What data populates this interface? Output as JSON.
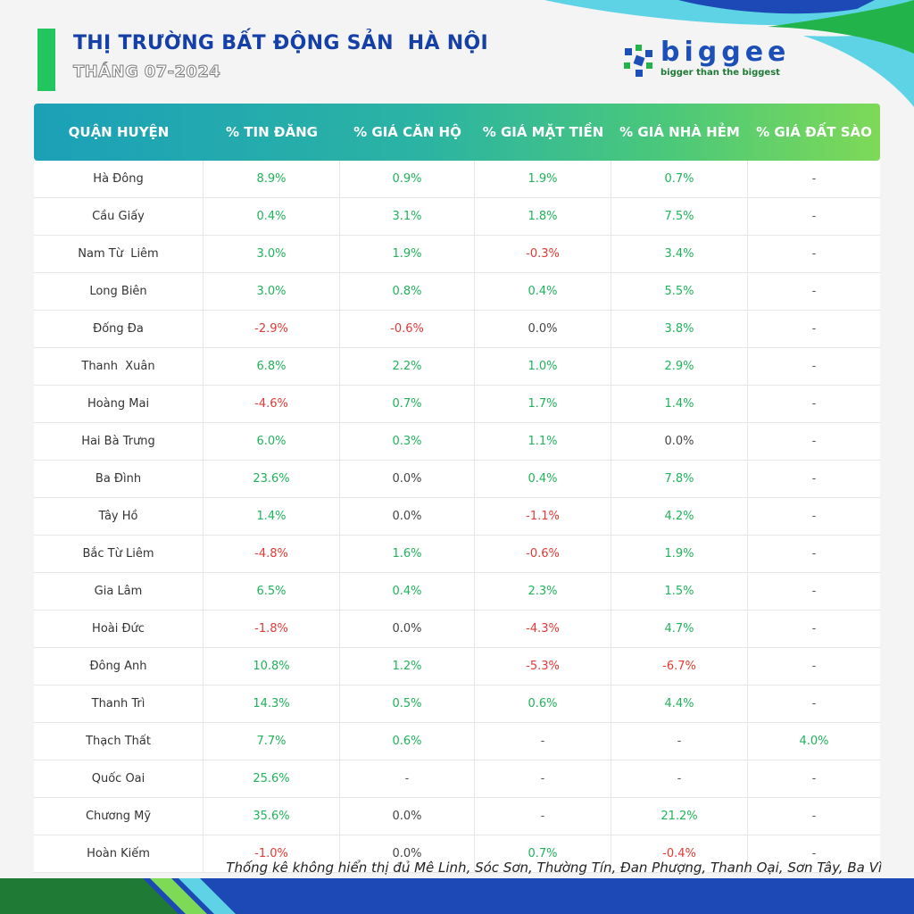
{
  "header": {
    "title": "THỊ TRƯỜNG BẤT ĐỘNG SẢN  HÀ NỘI",
    "subtitle": "THÁNG 07-2024"
  },
  "logo": {
    "wordmark": "biggee",
    "tagline": "bigger than the biggest"
  },
  "table": {
    "columns": [
      "QUẬN HUYỆN",
      "% TIN ĐĂNG",
      "% GIÁ CĂN HỘ",
      "% GIÁ MẶT TIỀN",
      "% GIÁ NHÀ HẺM",
      "% GIÁ ĐẤT SÀO"
    ],
    "rows": [
      [
        "Hà Đông",
        "8.9%",
        "0.9%",
        "1.9%",
        "0.7%",
        "-"
      ],
      [
        "Cầu Giấy",
        "0.4%",
        "3.1%",
        "1.8%",
        "7.5%",
        "-"
      ],
      [
        "Nam Từ  Liêm",
        "3.0%",
        "1.9%",
        "-0.3%",
        "3.4%",
        "-"
      ],
      [
        "Long Biên",
        "3.0%",
        "0.8%",
        "0.4%",
        "5.5%",
        "-"
      ],
      [
        "Đống Đa",
        "-2.9%",
        "-0.6%",
        "0.0%",
        "3.8%",
        "-"
      ],
      [
        "Thanh  Xuân",
        "6.8%",
        "2.2%",
        "1.0%",
        "2.9%",
        "-"
      ],
      [
        "Hoàng Mai",
        "-4.6%",
        "0.7%",
        "1.7%",
        "1.4%",
        "-"
      ],
      [
        "Hai Bà Trưng",
        "6.0%",
        "0.3%",
        "1.1%",
        "0.0%",
        "-"
      ],
      [
        "Ba Đình",
        "23.6%",
        "0.0%",
        "0.4%",
        "7.8%",
        "-"
      ],
      [
        "Tây Hồ",
        "1.4%",
        "0.0%",
        "-1.1%",
        "4.2%",
        "-"
      ],
      [
        "Bắc Từ Liêm",
        "-4.8%",
        "1.6%",
        "-0.6%",
        "1.9%",
        "-"
      ],
      [
        "Gia Lâm",
        "6.5%",
        "0.4%",
        "2.3%",
        "1.5%",
        "-"
      ],
      [
        "Hoài Đức",
        "-1.8%",
        "0.0%",
        "-4.3%",
        "4.7%",
        "-"
      ],
      [
        "Đông Anh",
        "10.8%",
        "1.2%",
        "-5.3%",
        "-6.7%",
        "-"
      ],
      [
        "Thanh Trì",
        "14.3%",
        "0.5%",
        "0.6%",
        "4.4%",
        "-"
      ],
      [
        "Thạch Thất",
        "7.7%",
        "0.6%",
        "-",
        "-",
        "4.0%"
      ],
      [
        "Quốc Oai",
        "25.6%",
        "-",
        "-",
        "-",
        "-"
      ],
      [
        "Chương Mỹ",
        "35.6%",
        "0.0%",
        "-",
        "21.2%",
        "-"
      ],
      [
        "Hoàn Kiếm",
        "-1.0%",
        "0.0%",
        "0.7%",
        "-0.4%",
        "-"
      ]
    ]
  },
  "footnote": "Thống kê không hiển thị đủ Mê Linh, Sóc Sơn, Thường Tín, Đan Phượng, Thanh Oại, Sơn Tây, Ba Vì",
  "colors": {
    "positive": "#1fb35a",
    "negative": "#e53935",
    "title": "#1540a8",
    "accent": "#22c55e"
  }
}
